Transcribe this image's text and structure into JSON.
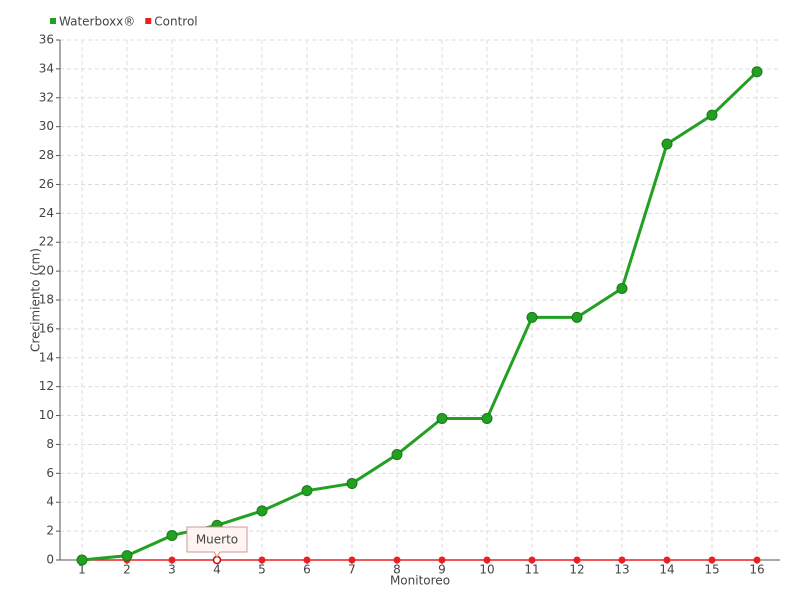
{
  "chart_data": {
    "type": "line",
    "x_label": "Monitoreo",
    "y_label": "Crecimiento (cm)",
    "categories": [
      "1",
      "2",
      "3",
      "4",
      "5",
      "6",
      "7",
      "8",
      "9",
      "10",
      "11",
      "12",
      "13",
      "14",
      "15",
      "16"
    ],
    "series": [
      {
        "name": "Waterboxx®",
        "color": "#22a022",
        "values": [
          0,
          0.3,
          1.7,
          2.4,
          3.4,
          4.8,
          5.3,
          7.3,
          9.8,
          9.8,
          16.8,
          16.8,
          18.8,
          28.8,
          30.8,
          33.8
        ]
      },
      {
        "name": "Control",
        "color": "#e82020",
        "values": [
          0,
          0,
          0,
          0,
          0,
          0,
          0,
          0,
          0,
          0,
          0,
          0,
          0,
          0,
          0,
          0
        ]
      }
    ],
    "ylim": [
      0,
      36
    ],
    "yticks": [
      0,
      2,
      4,
      6,
      8,
      10,
      12,
      14,
      16,
      18,
      20,
      22,
      24,
      26,
      28,
      30,
      32,
      34,
      36
    ],
    "grid": true,
    "legend": "top-left",
    "annotation": {
      "text": "Muerto",
      "x": "4",
      "y": 0
    }
  }
}
